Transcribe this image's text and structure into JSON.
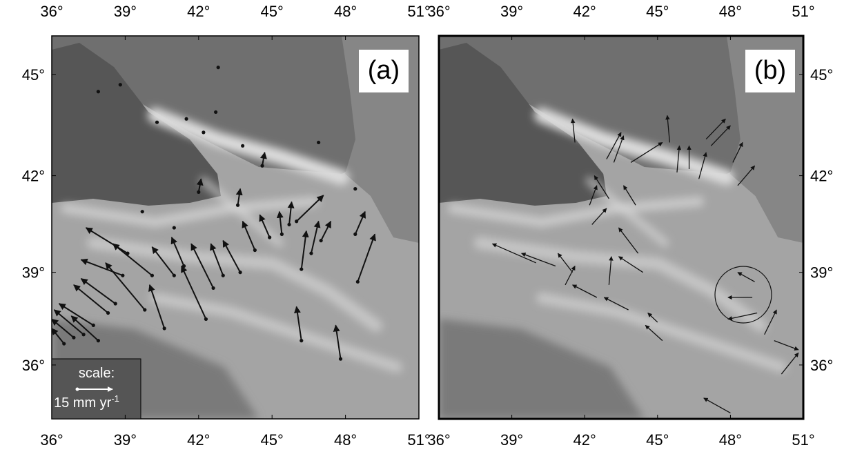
{
  "lon_ticks": [
    {
      "value": 36,
      "label": "36°"
    },
    {
      "value": 39,
      "label": "39°"
    },
    {
      "value": 42,
      "label": "42°"
    },
    {
      "value": 45,
      "label": "45°"
    },
    {
      "value": 48,
      "label": "48°"
    },
    {
      "value": 51,
      "label": "51°"
    }
  ],
  "lat_ticks": [
    {
      "value": 36,
      "label": "36°"
    },
    {
      "value": 39,
      "label": "39°"
    },
    {
      "value": 42,
      "label": "42°"
    },
    {
      "value": 45,
      "label": "45°"
    }
  ],
  "lonlim": [
    36,
    51
  ],
  "latlim": [
    34.2,
    46.1
  ],
  "maps": [
    {
      "label": "(a)",
      "vectors": [
        [
          39.1,
          39.6,
          37.4,
          40.4
        ],
        [
          40.1,
          38.9,
          38.5,
          39.9
        ],
        [
          39.8,
          37.8,
          38.2,
          39.3
        ],
        [
          40.6,
          37.2,
          40.0,
          38.6
        ],
        [
          38.9,
          38.9,
          37.2,
          39.4
        ],
        [
          38.3,
          37.7,
          36.9,
          38.6
        ],
        [
          37.7,
          37.3,
          36.3,
          38.0
        ],
        [
          37.3,
          37.0,
          36.1,
          37.8
        ],
        [
          36.9,
          36.9,
          36.0,
          37.5
        ],
        [
          36.5,
          36.7,
          36.0,
          37.2
        ],
        [
          38.6,
          38.0,
          37.2,
          38.8
        ],
        [
          37.9,
          36.8,
          36.8,
          37.6
        ],
        [
          41.0,
          38.9,
          40.1,
          39.8
        ],
        [
          41.4,
          39.2,
          40.9,
          40.1
        ],
        [
          42.3,
          37.5,
          41.3,
          39.2
        ],
        [
          42.6,
          38.5,
          41.7,
          39.9
        ],
        [
          43.0,
          38.9,
          42.5,
          39.9
        ],
        [
          43.7,
          39.0,
          43.0,
          40.0
        ],
        [
          44.3,
          39.7,
          43.8,
          40.6
        ],
        [
          44.9,
          40.1,
          44.5,
          40.8
        ],
        [
          45.4,
          40.2,
          45.3,
          40.9
        ],
        [
          45.7,
          40.5,
          45.8,
          41.2
        ],
        [
          46.2,
          39.1,
          46.4,
          40.3
        ],
        [
          46.6,
          39.6,
          46.9,
          40.6
        ],
        [
          47.0,
          40.0,
          47.4,
          40.6
        ],
        [
          46.0,
          40.6,
          47.1,
          41.4
        ],
        [
          48.4,
          40.2,
          48.8,
          40.9
        ],
        [
          48.5,
          38.7,
          49.2,
          40.2
        ],
        [
          46.2,
          36.8,
          46.0,
          37.9
        ],
        [
          47.8,
          36.2,
          47.6,
          37.3
        ],
        [
          42.0,
          41.5,
          42.1,
          41.9
        ],
        [
          43.6,
          41.1,
          43.7,
          41.6
        ],
        [
          44.6,
          42.3,
          44.7,
          42.7
        ]
      ],
      "stations": [
        [
          37.9,
          44.5
        ],
        [
          38.8,
          44.7
        ],
        [
          40.3,
          43.6
        ],
        [
          41.5,
          43.7
        ],
        [
          42.2,
          43.3
        ],
        [
          42.8,
          45.2
        ],
        [
          42.7,
          43.9
        ],
        [
          43.8,
          42.9
        ],
        [
          46.9,
          43.0
        ],
        [
          48.4,
          41.6
        ],
        [
          39.7,
          40.9
        ],
        [
          41.0,
          40.4
        ]
      ],
      "scale": {
        "title": "scale:",
        "text": "15 mm yr",
        "exponent": "-1"
      }
    },
    {
      "label": "(b)",
      "vectors": [
        [
          41.6,
          43.0,
          41.5,
          43.7
        ],
        [
          42.9,
          42.5,
          43.5,
          43.3
        ],
        [
          43.2,
          42.4,
          43.6,
          43.2
        ],
        [
          43.9,
          42.4,
          45.2,
          43.0
        ],
        [
          45.5,
          43.0,
          45.4,
          43.8
        ],
        [
          45.8,
          42.1,
          45.9,
          42.9
        ],
        [
          46.3,
          42.2,
          46.3,
          42.9
        ],
        [
          46.7,
          41.9,
          47.0,
          42.7
        ],
        [
          47.0,
          43.1,
          47.8,
          43.7
        ],
        [
          47.2,
          42.9,
          48.0,
          43.5
        ],
        [
          48.1,
          42.4,
          48.5,
          43.0
        ],
        [
          48.3,
          41.7,
          49.0,
          42.3
        ],
        [
          42.2,
          41.1,
          42.5,
          41.7
        ],
        [
          43.0,
          41.3,
          42.4,
          42.0
        ],
        [
          44.1,
          41.1,
          43.6,
          41.7
        ],
        [
          42.3,
          40.5,
          42.9,
          41.0
        ],
        [
          44.2,
          39.6,
          43.4,
          40.4
        ],
        [
          41.5,
          39.0,
          40.9,
          39.6
        ],
        [
          40.8,
          39.2,
          39.4,
          39.6
        ],
        [
          40.0,
          39.3,
          38.2,
          39.9
        ],
        [
          43.0,
          38.6,
          43.1,
          39.5
        ],
        [
          44.4,
          39.0,
          43.4,
          39.5
        ],
        [
          41.2,
          38.6,
          41.6,
          39.2
        ],
        [
          42.5,
          38.2,
          41.5,
          38.6
        ],
        [
          43.8,
          37.8,
          42.8,
          38.2
        ],
        [
          45.2,
          36.8,
          44.5,
          37.3
        ],
        [
          45.0,
          37.4,
          44.6,
          37.7
        ],
        [
          49.0,
          38.7,
          48.3,
          39.0
        ],
        [
          48.9,
          38.2,
          47.9,
          38.2
        ],
        [
          49.1,
          37.7,
          47.9,
          37.5
        ],
        [
          49.4,
          37.0,
          49.9,
          37.8
        ],
        [
          49.8,
          36.8,
          50.8,
          36.5
        ],
        [
          50.1,
          35.7,
          50.8,
          36.4
        ],
        [
          48.0,
          34.4,
          46.9,
          34.9
        ]
      ]
    }
  ]
}
